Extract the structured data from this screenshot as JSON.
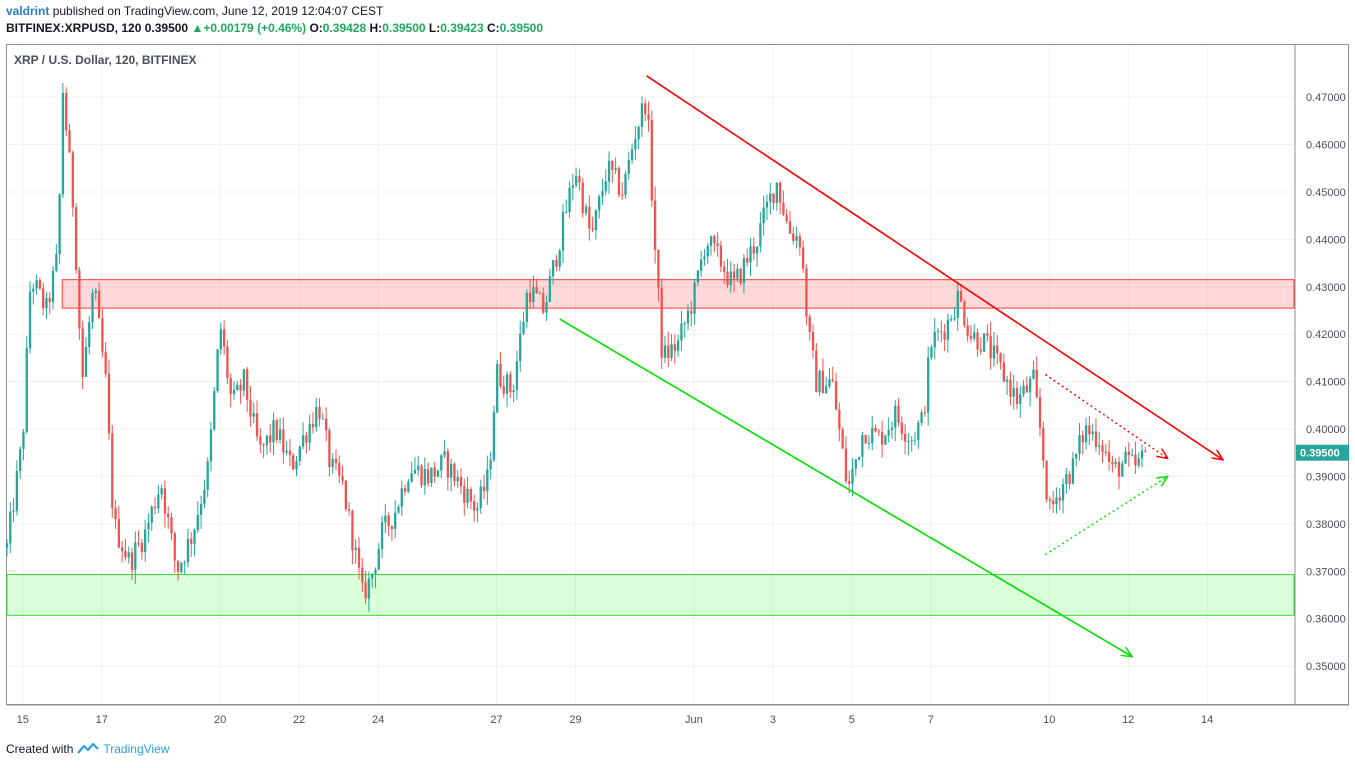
{
  "header": {
    "user": "valdrint",
    "published": "published on TradingView.com, June 12, 2019 12:04:07 CEST",
    "symbol": "BITFINEX:XRPUSD, 120",
    "last": "0.39500",
    "change": "+0.00179 (+0.46%)",
    "o_label": "O:",
    "o_value": "0.39428",
    "h_label": "H:",
    "h_value": "0.39500",
    "l_label": "L:",
    "l_value": "0.39423",
    "c_label": "C:",
    "c_value": "0.39500"
  },
  "legend": "XRP / U.S. Dollar, 120, BITFINEX",
  "footer": {
    "created": "Created with",
    "brand": "TradingView"
  },
  "colors": {
    "up": "#26a69a",
    "down": "#ef5350",
    "resistance": "#ff0000",
    "support": "#00e000",
    "price_tag": "#26a69a"
  },
  "chart_data": {
    "type": "candlestick",
    "title": "XRP / U.S. Dollar, 120, BITFINEX",
    "ylim": [
      0.342,
      0.481
    ],
    "y_ticks": [
      "0.35000",
      "0.36000",
      "0.37000",
      "0.38000",
      "0.39000",
      "0.40000",
      "0.41000",
      "0.42000",
      "0.43000",
      "0.44000",
      "0.45000",
      "0.46000",
      "0.47000"
    ],
    "x_ticks": [
      {
        "label": "15",
        "x": 0
      },
      {
        "label": "17",
        "x": 2
      },
      {
        "label": "20",
        "x": 5
      },
      {
        "label": "22",
        "x": 7
      },
      {
        "label": "24",
        "x": 9
      },
      {
        "label": "27",
        "x": 12
      },
      {
        "label": "29",
        "x": 14
      },
      {
        "label": "Jun",
        "x": 17
      },
      {
        "label": "3",
        "x": 19
      },
      {
        "label": "5",
        "x": 21
      },
      {
        "label": "7",
        "x": 23
      },
      {
        "label": "10",
        "x": 26
      },
      {
        "label": "12",
        "x": 28
      },
      {
        "label": "14",
        "x": 30
      }
    ],
    "x_unit": "days since May 15, 2019",
    "x_range": [
      -0.4,
      32.2
    ],
    "current_price": 0.395,
    "current_price_label": "0.39500",
    "price_path": [
      [
        -0.4,
        0.375
      ],
      [
        0.0,
        0.398
      ],
      [
        0.2,
        0.432
      ],
      [
        0.6,
        0.425
      ],
      [
        0.9,
        0.437
      ],
      [
        1.0,
        0.473
      ],
      [
        1.3,
        0.445
      ],
      [
        1.5,
        0.41
      ],
      [
        1.8,
        0.43
      ],
      [
        2.1,
        0.41
      ],
      [
        2.3,
        0.38
      ],
      [
        2.7,
        0.372
      ],
      [
        3.1,
        0.378
      ],
      [
        3.5,
        0.389
      ],
      [
        3.9,
        0.37
      ],
      [
        4.3,
        0.378
      ],
      [
        4.7,
        0.392
      ],
      [
        5.0,
        0.422
      ],
      [
        5.3,
        0.405
      ],
      [
        5.6,
        0.41
      ],
      [
        6.0,
        0.395
      ],
      [
        6.4,
        0.4
      ],
      [
        6.8,
        0.392
      ],
      [
        7.2,
        0.4
      ],
      [
        7.5,
        0.405
      ],
      [
        7.8,
        0.392
      ],
      [
        8.1,
        0.388
      ],
      [
        8.4,
        0.375
      ],
      [
        8.6,
        0.365
      ],
      [
        8.8,
        0.368
      ],
      [
        9.1,
        0.378
      ],
      [
        9.4,
        0.382
      ],
      [
        9.8,
        0.392
      ],
      [
        10.3,
        0.39
      ],
      [
        10.7,
        0.393
      ],
      [
        11.1,
        0.388
      ],
      [
        11.5,
        0.383
      ],
      [
        11.8,
        0.39
      ],
      [
        12.0,
        0.412
      ],
      [
        12.4,
        0.408
      ],
      [
        12.8,
        0.43
      ],
      [
        13.2,
        0.425
      ],
      [
        13.6,
        0.44
      ],
      [
        14.0,
        0.455
      ],
      [
        14.4,
        0.44
      ],
      [
        14.8,
        0.455
      ],
      [
        15.2,
        0.45
      ],
      [
        15.5,
        0.462
      ],
      [
        15.8,
        0.47
      ],
      [
        16.0,
        0.44
      ],
      [
        16.2,
        0.415
      ],
      [
        16.6,
        0.418
      ],
      [
        17.0,
        0.428
      ],
      [
        17.3,
        0.44
      ],
      [
        17.7,
        0.435
      ],
      [
        18.0,
        0.43
      ],
      [
        18.3,
        0.435
      ],
      [
        18.6,
        0.44
      ],
      [
        18.9,
        0.448
      ],
      [
        19.1,
        0.452
      ],
      [
        19.4,
        0.442
      ],
      [
        19.7,
        0.44
      ],
      [
        19.9,
        0.42
      ],
      [
        20.1,
        0.41
      ],
      [
        20.5,
        0.41
      ],
      [
        20.9,
        0.387
      ],
      [
        21.3,
        0.4
      ],
      [
        21.7,
        0.398
      ],
      [
        22.1,
        0.403
      ],
      [
        22.5,
        0.398
      ],
      [
        22.8,
        0.402
      ],
      [
        23.0,
        0.418
      ],
      [
        23.4,
        0.422
      ],
      [
        23.7,
        0.428
      ],
      [
        24.0,
        0.42
      ],
      [
        24.4,
        0.418
      ],
      [
        24.8,
        0.412
      ],
      [
        25.2,
        0.406
      ],
      [
        25.6,
        0.41
      ],
      [
        25.8,
        0.398
      ],
      [
        26.0,
        0.382
      ],
      [
        26.3,
        0.388
      ],
      [
        26.6,
        0.392
      ],
      [
        26.9,
        0.4
      ],
      [
        27.3,
        0.398
      ],
      [
        27.6,
        0.391
      ],
      [
        27.9,
        0.393
      ],
      [
        28.2,
        0.392
      ],
      [
        28.5,
        0.395
      ]
    ],
    "resistance_zone": [
      0.4255,
      0.4315
    ],
    "support_zone": [
      0.3607,
      0.3693
    ],
    "trendlines": [
      {
        "name": "upper trend",
        "x": [
          15.8,
          30.4
        ],
        "y": [
          0.4745,
          0.3935
        ]
      },
      {
        "name": "lower trend",
        "x": [
          13.6,
          28.1
        ],
        "y": [
          0.4232,
          0.352
        ]
      },
      {
        "name": "triangle top",
        "x": [
          25.9,
          29.0
        ],
        "y": [
          0.4115,
          0.3938
        ]
      },
      {
        "name": "triangle bottom",
        "x": [
          25.9,
          29.0
        ],
        "y": [
          0.3735,
          0.39
        ]
      }
    ]
  }
}
